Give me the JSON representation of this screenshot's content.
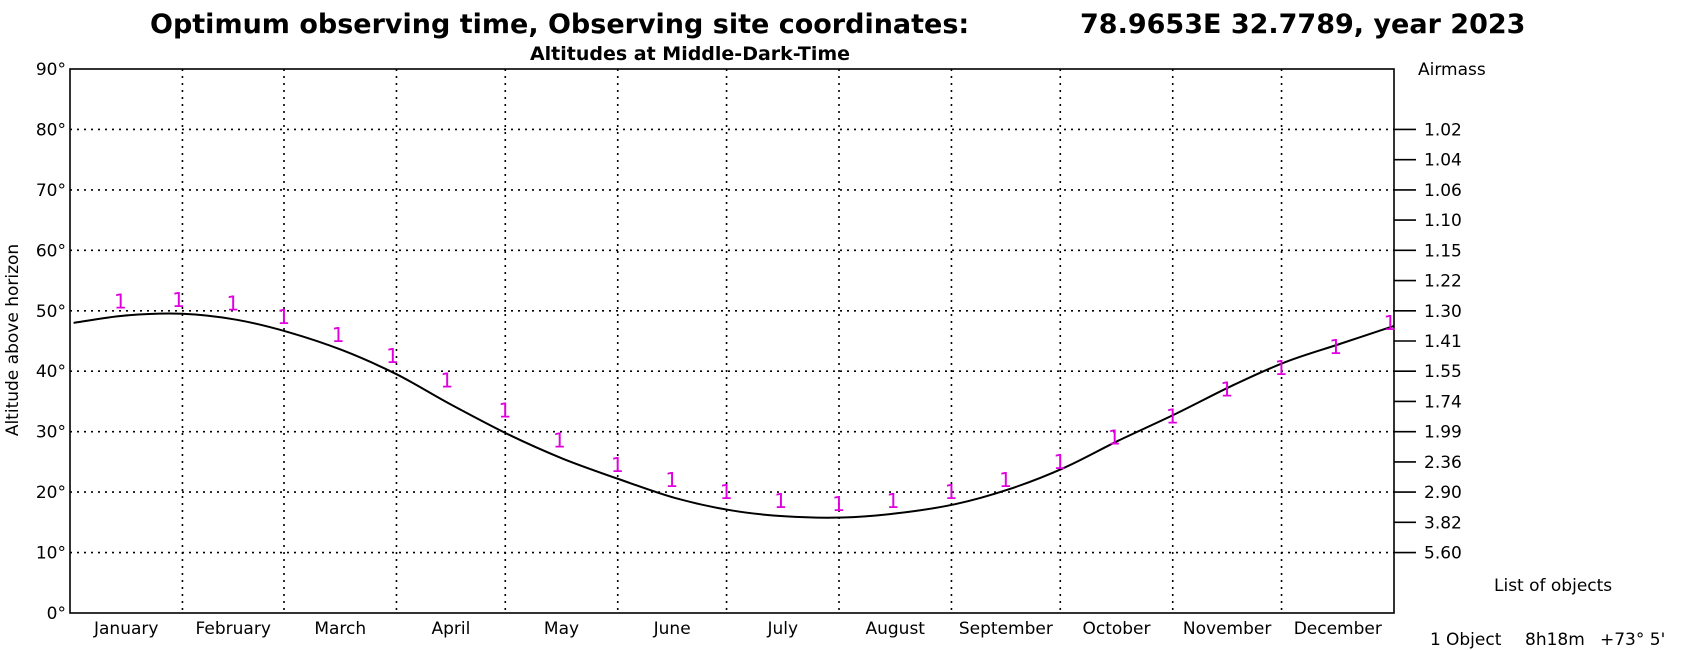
{
  "chart_data": {
    "type": "line",
    "title": "Optimum observing time, Observing site coordinates:",
    "title_coords": "78.9653E  32.7789, year 2023",
    "subtitle": "Altitudes at Middle-Dark-Time",
    "ylabel": "Altitude above horizon",
    "y2label": "Airmass",
    "ylim": [
      0,
      90
    ],
    "y_ticks": [
      {
        "value": 0,
        "label": "0°"
      },
      {
        "value": 10,
        "label": "10°"
      },
      {
        "value": 20,
        "label": "20°"
      },
      {
        "value": 30,
        "label": "30°"
      },
      {
        "value": 40,
        "label": "40°"
      },
      {
        "value": 50,
        "label": "50°"
      },
      {
        "value": 60,
        "label": "60°"
      },
      {
        "value": 70,
        "label": "70°"
      },
      {
        "value": 80,
        "label": "80°"
      },
      {
        "value": 90,
        "label": "90°"
      }
    ],
    "airmass_ticks": [
      {
        "alt": 80,
        "label": "1.02"
      },
      {
        "alt": 75,
        "label": "1.04"
      },
      {
        "alt": 70,
        "label": "1.06"
      },
      {
        "alt": 65,
        "label": "1.10"
      },
      {
        "alt": 60,
        "label": "1.15"
      },
      {
        "alt": 55,
        "label": "1.22"
      },
      {
        "alt": 50,
        "label": "1.30"
      },
      {
        "alt": 45,
        "label": "1.41"
      },
      {
        "alt": 40,
        "label": "1.55"
      },
      {
        "alt": 35,
        "label": "1.74"
      },
      {
        "alt": 30,
        "label": "1.99"
      },
      {
        "alt": 25,
        "label": "2.36"
      },
      {
        "alt": 20,
        "label": "2.90"
      },
      {
        "alt": 15,
        "label": "3.82"
      },
      {
        "alt": 10,
        "label": "5.60"
      }
    ],
    "grid": true,
    "months": [
      "January",
      "February",
      "March",
      "April",
      "May",
      "June",
      "July",
      "August",
      "September",
      "October",
      "November",
      "December"
    ],
    "month_lengths": [
      31,
      28,
      31,
      30,
      31,
      30,
      31,
      31,
      30,
      31,
      30,
      31
    ],
    "series": [
      {
        "marker_label": "1",
        "curve": {
          "day": [
            1,
            15,
            31,
            46,
            60,
            75,
            90,
            105,
            121,
            136,
            152,
            167,
            182,
            197,
            213,
            228,
            244,
            259,
            274,
            289,
            305,
            320,
            335,
            350,
            365
          ],
          "altitude": [
            48,
            49.2,
            49.5,
            48.5,
            46.5,
            43.5,
            39.5,
            34.5,
            29.5,
            25.5,
            22,
            19,
            17,
            16,
            15.8,
            16.5,
            18,
            20.5,
            24,
            28.5,
            33,
            37.5,
            41.5,
            44.5,
            47.5
          ]
        },
        "markers": {
          "day": [
            15,
            31,
            46,
            60,
            75,
            90,
            105,
            121,
            136,
            152,
            167,
            182,
            197,
            213,
            228,
            244,
            259,
            274,
            289,
            305,
            320,
            335,
            350,
            365
          ],
          "altitude": [
            51.5,
            51.8,
            51.2,
            49,
            46,
            42.5,
            38.5,
            33.5,
            28.5,
            24.5,
            22,
            20,
            18.5,
            18,
            18.5,
            20,
            22,
            25,
            29,
            32.5,
            37,
            40.5,
            44,
            48
          ]
        }
      }
    ]
  },
  "objects_panel": {
    "header": "List of objects",
    "items": [
      {
        "index": "1",
        "name": "Object",
        "ra": "8h18m",
        "dec": "+73° 5'"
      }
    ]
  }
}
